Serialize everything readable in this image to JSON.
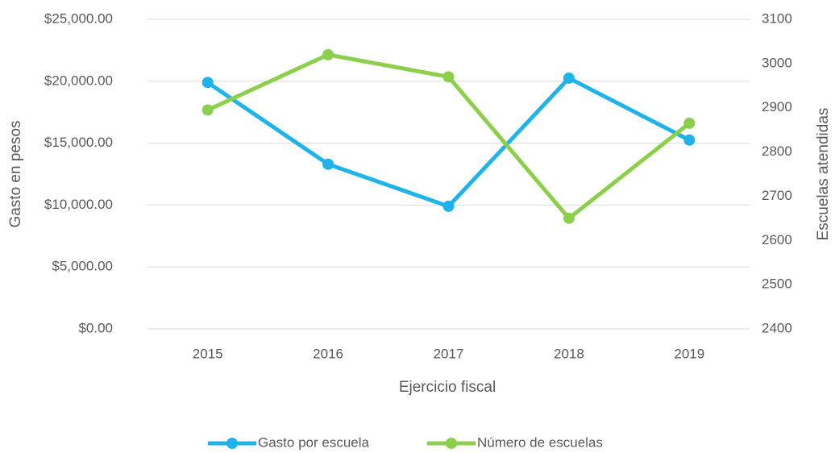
{
  "chart_data": {
    "type": "line",
    "x_label": "Ejercicio fiscal",
    "y_label": "Gasto en pesos",
    "y2_label": "Escuelas atendidas",
    "categories": [
      "2015",
      "2016",
      "2017",
      "2018",
      "2019"
    ],
    "series": [
      {
        "name": "Gasto por escuela",
        "color": "#1fb3ea",
        "values": [
          19900,
          13300,
          9900,
          20250,
          15250
        ]
      },
      {
        "name": "Número de escuelas",
        "color": "#8ccf4d",
        "axis": "y2",
        "values": [
          2895,
          3020,
          2970,
          2650,
          2865
        ]
      }
    ],
    "ylim": [
      0,
      25000
    ],
    "yticks": [
      {
        "value": 0,
        "label": "$0.00"
      },
      {
        "value": 5000,
        "label": "$5,000.00"
      },
      {
        "value": 10000,
        "label": "$10,000.00"
      },
      {
        "value": 15000,
        "label": "$15,000.00"
      },
      {
        "value": 20000,
        "label": "$20,000.00"
      },
      {
        "value": 25000,
        "label": "$25,000.00"
      }
    ],
    "y2lim": [
      2400,
      3100
    ],
    "y2ticks": [
      2400,
      2500,
      2600,
      2700,
      2800,
      2900,
      3000,
      3100
    ],
    "grid": true,
    "legend": "bottom"
  }
}
